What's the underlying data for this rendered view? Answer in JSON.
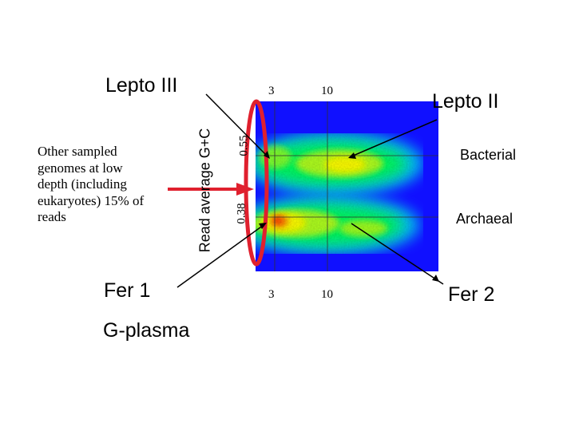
{
  "labels": {
    "lepto_iii": "Lepto III",
    "lepto_ii": "Lepto II",
    "fer_1": "Fer 1",
    "fer_2": "Fer 2",
    "g_plasma": "G-plasma",
    "bacterial": "Bacterial",
    "archaeal": "Archaeal"
  },
  "note_lines": [
    "Other sampled",
    "genomes at low",
    "depth (including",
    "eukaryotes) 15% of",
    "reads"
  ],
  "plot": {
    "y_axis_label": "Read average G+C",
    "x_ticks_top": [
      "3",
      "10"
    ],
    "x_ticks_bottom": [
      "3",
      "10"
    ],
    "y_ticks": [
      "0.55",
      "0.38"
    ]
  },
  "colors": {
    "heatmap_background": "#1010ff",
    "cluster_high": "#ffff00",
    "cluster_peak": "#ff2000",
    "cluster_mid": "#00ff40",
    "highlight_ellipse": "#e0202e",
    "note_arrow": "#e0202e",
    "pointer_lines": "#000000"
  }
}
